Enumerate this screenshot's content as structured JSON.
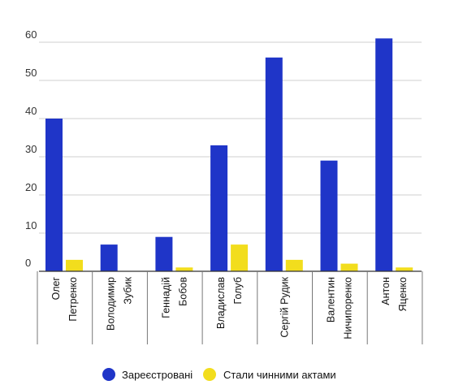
{
  "chart_data": {
    "type": "bar",
    "categories": [
      [
        "Олег",
        "Петренко"
      ],
      [
        "Володимир",
        "Зубик"
      ],
      [
        "Геннадій",
        "Бобов"
      ],
      [
        "Владислав",
        "Голуб"
      ],
      [
        "Сергій Рудик"
      ],
      [
        "Валентин",
        "Ничипоренко"
      ],
      [
        "Антон",
        "Яценко"
      ]
    ],
    "series": [
      {
        "name": "Зареєстровані",
        "color": "#1f35c8",
        "values": [
          40,
          7,
          9,
          33,
          56,
          29,
          61
        ]
      },
      {
        "name": "Стали чинними актами",
        "color": "#f2dd1d",
        "values": [
          3,
          0,
          1,
          7,
          3,
          2,
          1
        ]
      }
    ],
    "ylim": [
      0,
      60
    ],
    "yticks": [
      "0",
      "10",
      "20",
      "30",
      "40",
      "50",
      "60"
    ],
    "grid": true,
    "legend": "bottom-center",
    "title": "",
    "xlabel": "",
    "ylabel": ""
  }
}
